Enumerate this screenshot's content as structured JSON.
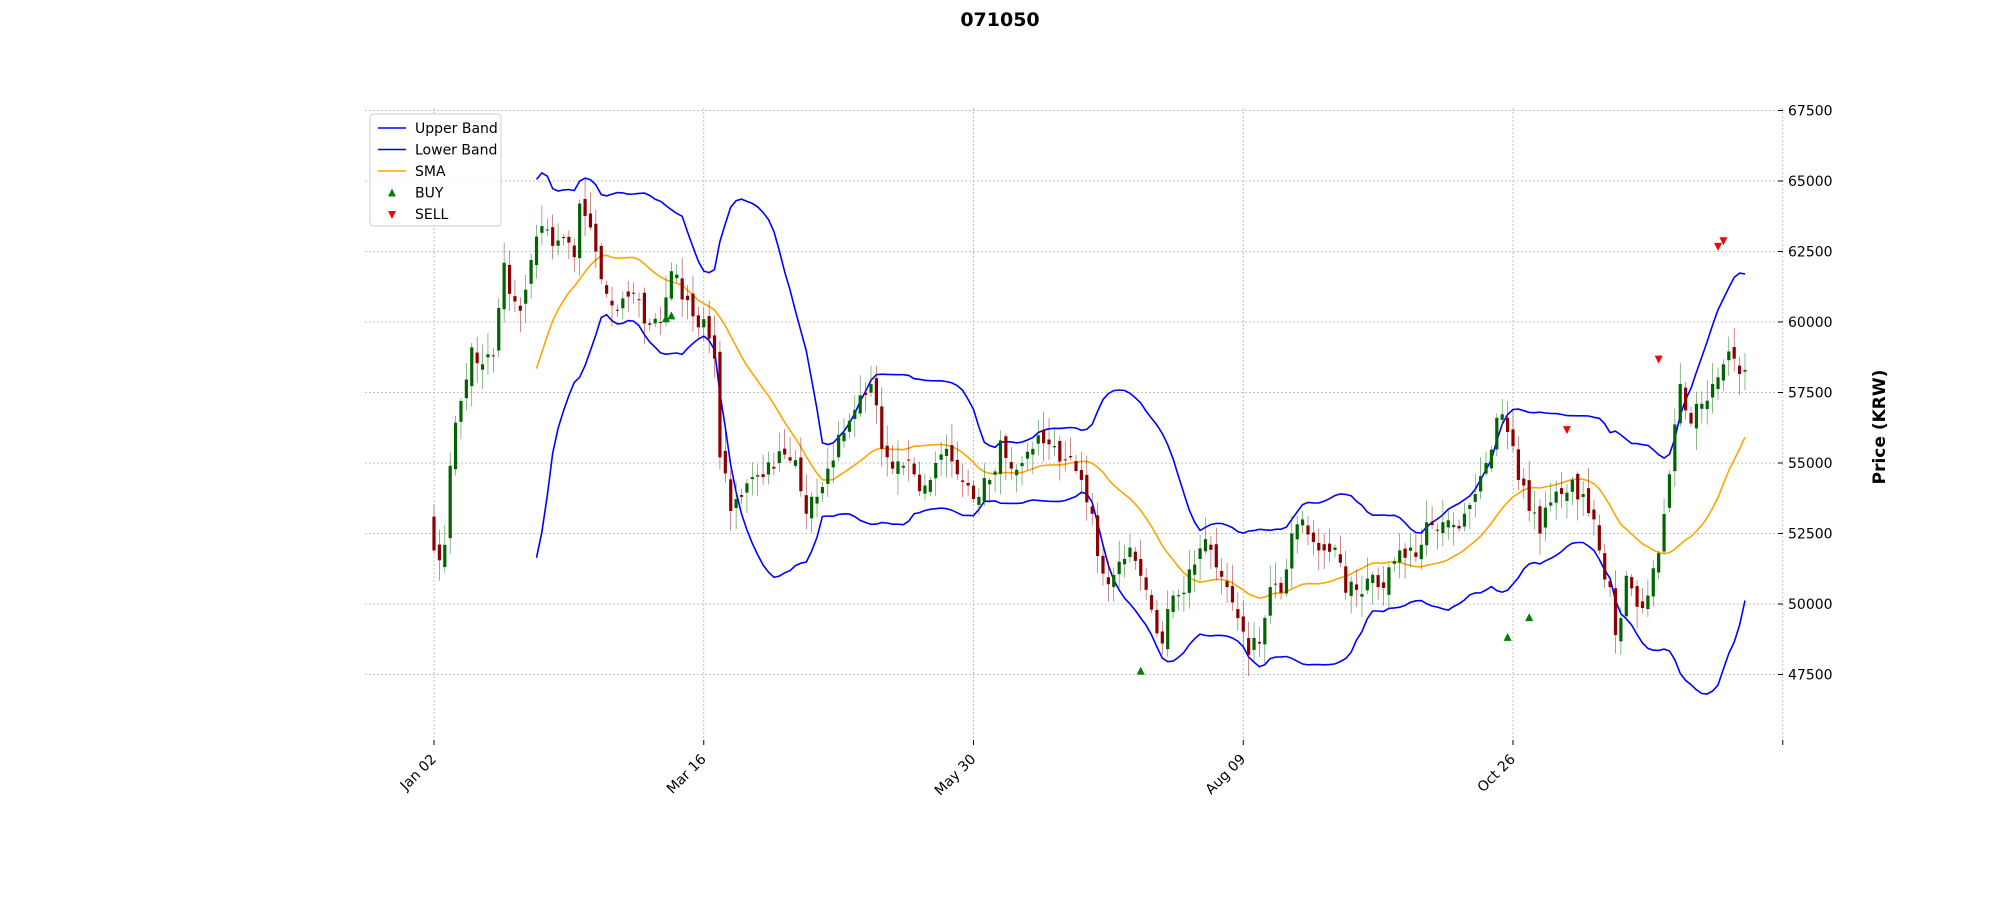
{
  "chart_data": {
    "type": "candlestick",
    "title": "071050",
    "ylabel": "Price (KRW)",
    "xlabel": "",
    "ylim": [
      45500,
      67500
    ],
    "y_ticks": [
      47500,
      50000,
      52500,
      55000,
      57500,
      60000,
      62500,
      65000,
      67500
    ],
    "x_tick_labels": [
      "Jan 02",
      "Mar 16",
      "May 30",
      "Aug 09",
      "Oct 26"
    ],
    "x_tick_index": [
      0,
      50,
      100,
      150,
      200
    ],
    "x_last_tick_index": 250,
    "y_axis_side": "right",
    "grid": true,
    "legend": {
      "placement": "top-left",
      "entries": [
        {
          "label": "Upper Band",
          "kind": "line",
          "color": "#0000ff"
        },
        {
          "label": "Lower Band",
          "kind": "line",
          "color": "#0000ff"
        },
        {
          "label": "SMA",
          "kind": "line",
          "color": "#ffa500"
        },
        {
          "label": "BUY",
          "kind": "up-marker",
          "color": "#008000"
        },
        {
          "label": "SELL",
          "kind": "down-marker",
          "color": "#ff0000"
        }
      ]
    },
    "colors": {
      "up": "#006400",
      "down": "#8b0000",
      "band": "#0000ff",
      "sma": "#ffa500",
      "buy": "#008000",
      "sell": "#ff0000",
      "grid": "#b0b0b0"
    },
    "candle_count": 244,
    "close_anchors": [
      [
        0,
        51900
      ],
      [
        2,
        52100
      ],
      [
        3,
        54900
      ],
      [
        5,
        57200
      ],
      [
        7,
        59100
      ],
      [
        9,
        58500
      ],
      [
        11,
        58800
      ],
      [
        12,
        60500
      ],
      [
        13,
        62100
      ],
      [
        14,
        61000
      ],
      [
        16,
        60400
      ],
      [
        18,
        62200
      ],
      [
        20,
        63400
      ],
      [
        22,
        62700
      ],
      [
        24,
        63000
      ],
      [
        26,
        62300
      ],
      [
        27,
        64200
      ],
      [
        30,
        62500
      ],
      [
        32,
        61000
      ],
      [
        34,
        60400
      ],
      [
        36,
        60900
      ],
      [
        38,
        60800
      ],
      [
        40,
        59900
      ],
      [
        42,
        60000
      ],
      [
        44,
        61800
      ],
      [
        46,
        60800
      ],
      [
        48,
        60200
      ],
      [
        50,
        60100
      ],
      [
        52,
        58700
      ],
      [
        53,
        55200
      ],
      [
        55,
        53300
      ],
      [
        57,
        53800
      ],
      [
        59,
        54500
      ],
      [
        61,
        54500
      ],
      [
        63,
        54800
      ],
      [
        65,
        55300
      ],
      [
        67,
        55100
      ],
      [
        69,
        53200
      ],
      [
        71,
        53800
      ],
      [
        73,
        54800
      ],
      [
        75,
        56000
      ],
      [
        77,
        56500
      ],
      [
        79,
        57400
      ],
      [
        81,
        57800
      ],
      [
        83,
        55500
      ],
      [
        85,
        54800
      ],
      [
        87,
        54900
      ],
      [
        89,
        54600
      ],
      [
        91,
        54200
      ],
      [
        93,
        55000
      ],
      [
        95,
        55500
      ],
      [
        97,
        54600
      ],
      [
        99,
        54200
      ],
      [
        101,
        53800
      ],
      [
        103,
        54400
      ],
      [
        105,
        55800
      ],
      [
        107,
        54800
      ],
      [
        109,
        55000
      ],
      [
        111,
        55500
      ],
      [
        113,
        55700
      ],
      [
        115,
        55600
      ],
      [
        117,
        55100
      ],
      [
        118,
        55200
      ],
      [
        120,
        54400
      ],
      [
        122,
        53200
      ],
      [
        123,
        51700
      ],
      [
        125,
        50700
      ],
      [
        127,
        51500
      ],
      [
        129,
        52000
      ],
      [
        131,
        51000
      ],
      [
        133,
        49800
      ],
      [
        135,
        48600
      ],
      [
        137,
        50300
      ],
      [
        139,
        50400
      ],
      [
        141,
        51400
      ],
      [
        143,
        52300
      ],
      [
        145,
        51300
      ],
      [
        147,
        50600
      ],
      [
        149,
        49500
      ],
      [
        151,
        48200
      ],
      [
        153,
        48600
      ],
      [
        155,
        50600
      ],
      [
        157,
        50400
      ],
      [
        159,
        52500
      ],
      [
        161,
        53000
      ],
      [
        163,
        52200
      ],
      [
        165,
        51900
      ],
      [
        167,
        52000
      ],
      [
        169,
        50400
      ],
      [
        171,
        50500
      ],
      [
        173,
        50900
      ],
      [
        175,
        50600
      ],
      [
        177,
        51300
      ],
      [
        179,
        51900
      ],
      [
        181,
        52000
      ],
      [
        183,
        52100
      ],
      [
        185,
        52800
      ],
      [
        187,
        52900
      ],
      [
        189,
        52800
      ],
      [
        191,
        53200
      ],
      [
        193,
        53900
      ],
      [
        195,
        55000
      ],
      [
        197,
        56600
      ],
      [
        199,
        56100
      ],
      [
        201,
        54400
      ],
      [
        203,
        53300
      ],
      [
        205,
        52500
      ],
      [
        207,
        53600
      ],
      [
        209,
        53900
      ],
      [
        211,
        54400
      ],
      [
        213,
        53900
      ],
      [
        215,
        53000
      ],
      [
        216,
        51900
      ],
      [
        218,
        50600
      ],
      [
        219,
        48900
      ],
      [
        221,
        51000
      ],
      [
        223,
        49900
      ],
      [
        225,
        50300
      ],
      [
        227,
        51800
      ],
      [
        229,
        54600
      ],
      [
        231,
        57800
      ],
      [
        233,
        56400
      ],
      [
        235,
        57100
      ],
      [
        237,
        57800
      ],
      [
        239,
        58500
      ],
      [
        241,
        58700
      ],
      [
        243,
        58300
      ]
    ],
    "marker_anchors": [
      [
        43,
        60100,
        "BUY"
      ],
      [
        44,
        60200,
        "BUY"
      ],
      [
        131,
        47600,
        "BUY"
      ],
      [
        199,
        48800,
        "BUY"
      ],
      [
        203,
        49500,
        "BUY"
      ],
      [
        210,
        56200,
        "SELL"
      ],
      [
        227,
        58700,
        "SELL"
      ],
      [
        238,
        62700,
        "SELL"
      ],
      [
        239,
        62900,
        "SELL"
      ]
    ],
    "bb_window": 20,
    "bb_std": 2
  }
}
